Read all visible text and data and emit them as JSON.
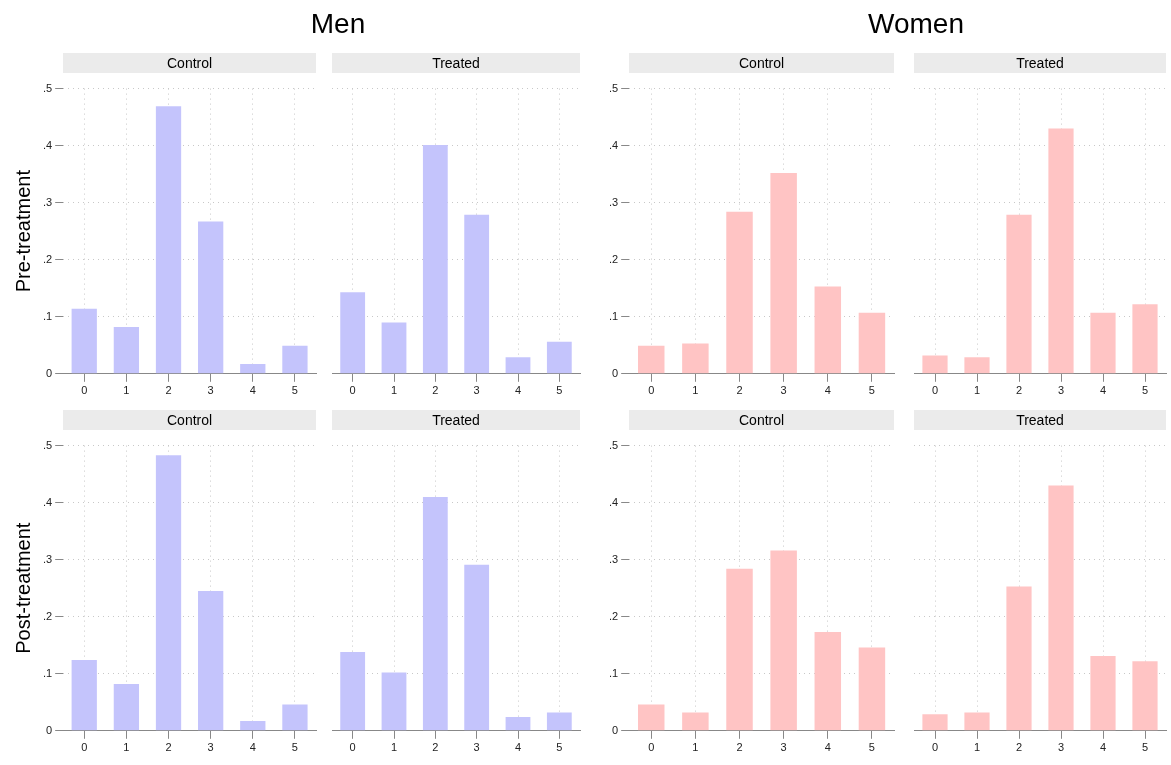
{
  "chart_data": [
    {
      "type": "bar",
      "title": "Control",
      "annotations": [
        "Men"
      ],
      "ylabel": "Pre-treatment",
      "categories": [
        "0",
        "1",
        "2",
        "3",
        "4",
        "5"
      ],
      "values": [
        0.114,
        0.082,
        0.469,
        0.267,
        0.017,
        0.049
      ],
      "color": "#c4c4fc",
      "ylim": [
        0,
        0.5
      ],
      "yticks": [
        {
          "value": 0,
          "label": "0"
        },
        {
          "value": 0.1,
          "label": ".1"
        },
        {
          "value": 0.2,
          "label": ".2"
        },
        {
          "value": 0.3,
          "label": ".3"
        },
        {
          "value": 0.4,
          "label": ".4"
        },
        {
          "value": 0.5,
          "label": ".5"
        }
      ],
      "grid": true,
      "legend": false
    },
    {
      "type": "bar",
      "title": "Treated",
      "categories": [
        "0",
        "1",
        "2",
        "3",
        "4",
        "5"
      ],
      "values": [
        0.143,
        0.09,
        0.401,
        0.279,
        0.029,
        0.056
      ],
      "color": "#c4c4fc",
      "ylim": [
        0,
        0.5
      ],
      "yticks": [
        {
          "value": 0,
          "label": null
        },
        {
          "value": 0.1,
          "label": null
        },
        {
          "value": 0.2,
          "label": null
        },
        {
          "value": 0.3,
          "label": null
        },
        {
          "value": 0.4,
          "label": null
        },
        {
          "value": 0.5,
          "label": null
        }
      ],
      "grid": true,
      "legend": false,
      "tick_labels": "x"
    },
    {
      "type": "bar",
      "title": "Control",
      "annotations": [
        "Women"
      ],
      "categories": [
        "0",
        "1",
        "2",
        "3",
        "4",
        "5"
      ],
      "values": [
        0.049,
        0.053,
        0.284,
        0.352,
        0.153,
        0.107
      ],
      "color": "#ffc4c4",
      "ylim": [
        0,
        0.5
      ],
      "yticks": [
        {
          "value": 0,
          "label": "0"
        },
        {
          "value": 0.1,
          "label": ".1"
        },
        {
          "value": 0.2,
          "label": ".2"
        },
        {
          "value": 0.3,
          "label": ".3"
        },
        {
          "value": 0.4,
          "label": ".4"
        },
        {
          "value": 0.5,
          "label": ".5"
        }
      ],
      "grid": true,
      "legend": false
    },
    {
      "type": "bar",
      "title": "Treated",
      "categories": [
        "0",
        "1",
        "2",
        "3",
        "4",
        "5"
      ],
      "values": [
        0.032,
        0.029,
        0.279,
        0.43,
        0.107,
        0.122
      ],
      "color": "#ffc4c4",
      "ylim": [
        0,
        0.5
      ],
      "yticks": [
        {
          "value": 0,
          "label": null
        },
        {
          "value": 0.1,
          "label": null
        },
        {
          "value": 0.2,
          "label": null
        },
        {
          "value": 0.3,
          "label": null
        },
        {
          "value": 0.4,
          "label": null
        },
        {
          "value": 0.5,
          "label": null
        }
      ],
      "grid": true,
      "legend": false,
      "tick_labels": "x"
    },
    {
      "type": "bar",
      "title": "Control",
      "ylabel": "Post-treatment",
      "categories": [
        "0",
        "1",
        "2",
        "3",
        "4",
        "5"
      ],
      "values": [
        0.124,
        0.082,
        0.483,
        0.245,
        0.017,
        0.046
      ],
      "color": "#c4c4fc",
      "ylim": [
        0,
        0.5
      ],
      "yticks": [
        {
          "value": 0,
          "label": "0"
        },
        {
          "value": 0.1,
          "label": ".1"
        },
        {
          "value": 0.2,
          "label": ".2"
        },
        {
          "value": 0.3,
          "label": ".3"
        },
        {
          "value": 0.4,
          "label": ".4"
        },
        {
          "value": 0.5,
          "label": ".5"
        }
      ],
      "grid": true,
      "legend": false
    },
    {
      "type": "bar",
      "title": "Treated",
      "categories": [
        "0",
        "1",
        "2",
        "3",
        "4",
        "5"
      ],
      "values": [
        0.138,
        0.102,
        0.41,
        0.291,
        0.024,
        0.032
      ],
      "color": "#c4c4fc",
      "ylim": [
        0,
        0.5
      ],
      "yticks": [
        {
          "value": 0,
          "label": null
        },
        {
          "value": 0.1,
          "label": null
        },
        {
          "value": 0.2,
          "label": null
        },
        {
          "value": 0.3,
          "label": null
        },
        {
          "value": 0.4,
          "label": null
        },
        {
          "value": 0.5,
          "label": null
        }
      ],
      "grid": true,
      "legend": false,
      "tick_labels": "x"
    },
    {
      "type": "bar",
      "title": "Control",
      "categories": [
        "0",
        "1",
        "2",
        "3",
        "4",
        "5"
      ],
      "values": [
        0.046,
        0.032,
        0.284,
        0.316,
        0.173,
        0.146
      ],
      "color": "#ffc4c4",
      "ylim": [
        0,
        0.5
      ],
      "yticks": [
        {
          "value": 0,
          "label": "0"
        },
        {
          "value": 0.1,
          "label": ".1"
        },
        {
          "value": 0.2,
          "label": ".2"
        },
        {
          "value": 0.3,
          "label": ".3"
        },
        {
          "value": 0.4,
          "label": ".4"
        },
        {
          "value": 0.5,
          "label": ".5"
        }
      ],
      "grid": true,
      "legend": false
    },
    {
      "type": "bar",
      "title": "Treated",
      "categories": [
        "0",
        "1",
        "2",
        "3",
        "4",
        "5"
      ],
      "values": [
        0.029,
        0.032,
        0.253,
        0.43,
        0.131,
        0.122
      ],
      "color": "#ffc4c4",
      "ylim": [
        0,
        0.5
      ],
      "yticks": [
        {
          "value": 0,
          "label": null
        },
        {
          "value": 0.1,
          "label": null
        },
        {
          "value": 0.2,
          "label": null
        },
        {
          "value": 0.3,
          "label": null
        },
        {
          "value": 0.4,
          "label": null
        },
        {
          "value": 0.5,
          "label": null
        }
      ],
      "grid": true,
      "legend": false,
      "tick_labels": "x"
    }
  ]
}
